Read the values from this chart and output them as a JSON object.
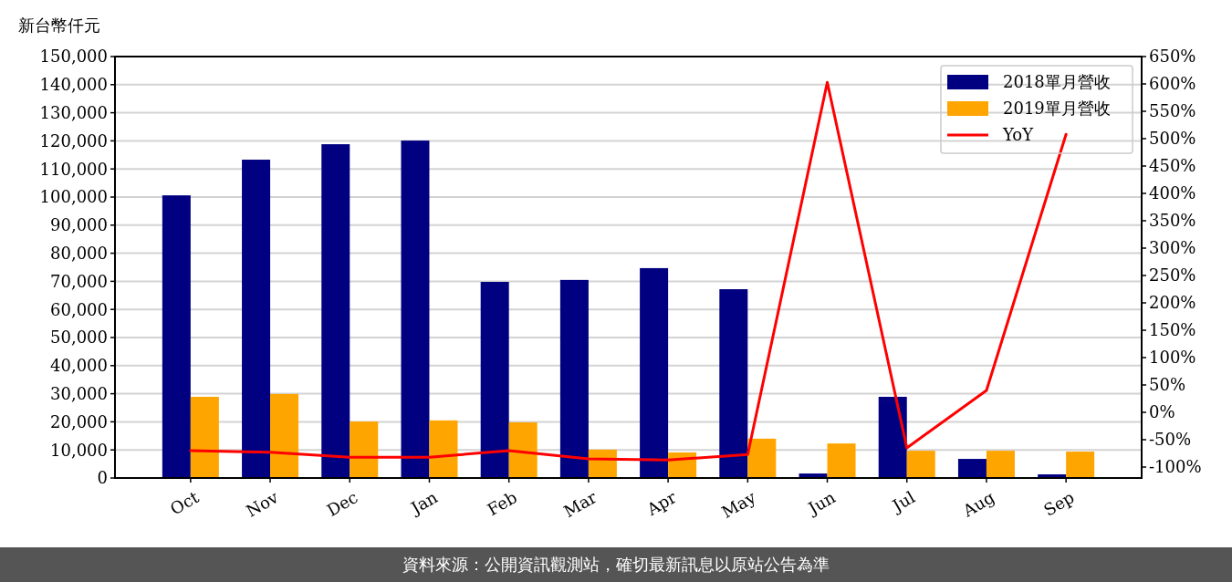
{
  "chart_data": {
    "type": "bar",
    "ylabel": "新台幣仟元",
    "categories": [
      "Oct",
      "Nov",
      "Dec",
      "Jan",
      "Feb",
      "Mar",
      "Apr",
      "May",
      "Jun",
      "Jul",
      "Aug",
      "Sep"
    ],
    "series": [
      {
        "name": "2018單月營收",
        "color": "#000080",
        "values": [
          100600,
          113300,
          118800,
          120100,
          69800,
          70500,
          74700,
          67200,
          1600,
          28900,
          6800,
          1300
        ]
      },
      {
        "name": "2019單月營收",
        "color": "#ffa500",
        "values": [
          28900,
          29900,
          20100,
          20500,
          19800,
          10100,
          9100,
          14000,
          12300,
          9700,
          9700,
          9400
        ]
      },
      {
        "name": "YoY",
        "type": "line",
        "axis": "y2",
        "color": "#ff0000",
        "values": [
          -70,
          -73,
          -82,
          -82,
          -70,
          -85,
          -87,
          -77,
          603,
          -65,
          40,
          508
        ]
      }
    ],
    "ylim": [
      0,
      150000
    ],
    "yticks": [
      0,
      {
        "value": 10000,
        "label": "10,000"
      },
      {
        "value": 20000,
        "label": "20,000"
      },
      {
        "value": 30000,
        "label": "30,000"
      },
      {
        "value": 40000,
        "label": "40,000"
      },
      {
        "value": 50000,
        "label": "50,000"
      },
      {
        "value": 60000,
        "label": "60,000"
      },
      {
        "value": 70000,
        "label": "70,000"
      },
      {
        "value": 80000,
        "label": "80,000"
      },
      {
        "value": 90000,
        "label": "90,000"
      },
      {
        "value": 100000,
        "label": "100,000"
      },
      {
        "value": 110000,
        "label": "110,000"
      },
      {
        "value": 120000,
        "label": "120,000"
      },
      {
        "value": 130000,
        "label": "130,000"
      },
      {
        "value": 140000,
        "label": "140,000"
      },
      {
        "value": 150000,
        "label": "150,000"
      }
    ],
    "y2lim": [
      -120,
      650
    ],
    "y2ticks": [
      {
        "value": -100,
        "label": "-100%"
      },
      {
        "value": -50,
        "label": "-50%"
      },
      {
        "value": 0,
        "label": "0%"
      },
      {
        "value": 50,
        "label": "50%"
      },
      {
        "value": 100,
        "label": "100%"
      },
      {
        "value": 150,
        "label": "150%"
      },
      {
        "value": 200,
        "label": "200%"
      },
      {
        "value": 250,
        "label": "250%"
      },
      {
        "value": 300,
        "label": "300%"
      },
      {
        "value": 350,
        "label": "350%"
      },
      {
        "value": 400,
        "label": "400%"
      },
      {
        "value": 450,
        "label": "450%"
      },
      {
        "value": 500,
        "label": "500%"
      },
      {
        "value": 550,
        "label": "550%"
      },
      {
        "value": 600,
        "label": "600%"
      },
      {
        "value": 650,
        "label": "650%"
      }
    ],
    "grid": "y",
    "legend": "top right",
    "annotations": [
      "資料來源：公開資訊觀測站，確切最新訊息以原站公告為準"
    ]
  }
}
